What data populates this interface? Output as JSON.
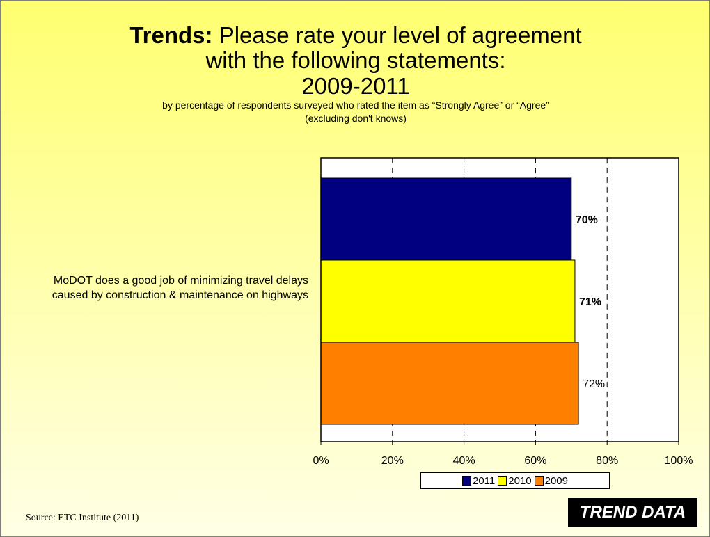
{
  "title": {
    "bold": "Trends:",
    "line1_rest": " Please rate your level of agreement",
    "line2": "with the following statements:",
    "line3": "2009-2011",
    "subtitle1": "by percentage of respondents surveyed who rated the item as “Strongly Agree” or “Agree”",
    "subtitle2": "(excluding don't knows)"
  },
  "chart_data": {
    "type": "bar",
    "orientation": "horizontal",
    "categories": [
      "MoDOT does a good job of minimizing travel delays caused by construction & maintenance on highways"
    ],
    "series": [
      {
        "name": "2011",
        "values": [
          70
        ],
        "color": "#000080",
        "label": "70%",
        "label_bold": true
      },
      {
        "name": "2010",
        "values": [
          71
        ],
        "color": "#ffff00",
        "label": "71%",
        "label_bold": true
      },
      {
        "name": "2009",
        "values": [
          72
        ],
        "color": "#ff8000",
        "label": "72%",
        "label_bold": false
      }
    ],
    "xlim": [
      0,
      100
    ],
    "xticks": [
      0,
      20,
      40,
      60,
      80,
      100
    ],
    "xtick_labels": [
      "0%",
      "20%",
      "40%",
      "60%",
      "80%",
      "100%"
    ],
    "grid": "vertical dashed",
    "legend": "bottom"
  },
  "category_label": "MoDOT does a good job of minimizing travel delays caused by construction & maintenance on highways",
  "source": "Source:  ETC Institute (2011)",
  "badge": "TREND DATA"
}
